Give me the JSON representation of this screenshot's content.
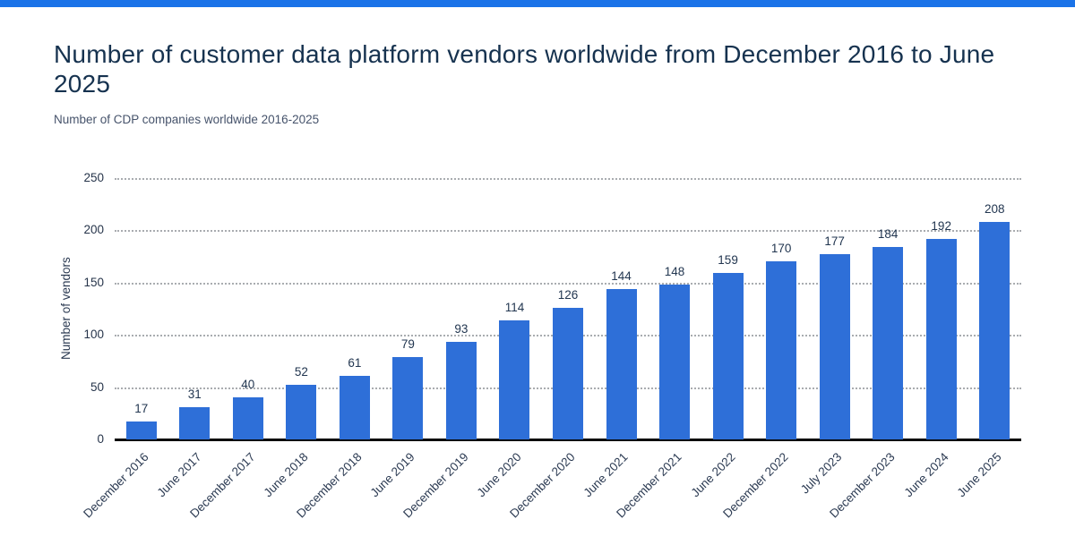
{
  "header": {
    "title": "Number of customer data platform vendors worldwide from December 2016 to June 2025",
    "subtitle": "Number of CDP companies worldwide 2016-2025"
  },
  "accent_bar_color": "#1a73e8",
  "chart_data": {
    "type": "bar",
    "title": "Number of customer data platform vendors worldwide from December 2016 to June 2025",
    "subtitle": "Number of CDP companies worldwide 2016-2025",
    "xlabel": "",
    "ylabel": "Number of vendors",
    "ylim": [
      0,
      250
    ],
    "yticks": [
      0,
      50,
      100,
      150,
      200,
      250
    ],
    "grid": "horizontal-dotted",
    "legend": "none",
    "bar_color": "#2e6fd8",
    "axis_color": "#0b0b0b",
    "categories": [
      "December 2016",
      "June 2017",
      "December 2017",
      "June 2018",
      "December 2018",
      "June 2019",
      "December 2019",
      "June 2020",
      "December 2020",
      "June 2021",
      "December 2021",
      "June 2022",
      "December 2022",
      "July 2023",
      "December 2023",
      "June 2024",
      "June 2025"
    ],
    "values": [
      17,
      31,
      40,
      52,
      61,
      79,
      93,
      114,
      126,
      144,
      148,
      159,
      170,
      177,
      184,
      192,
      208
    ]
  }
}
